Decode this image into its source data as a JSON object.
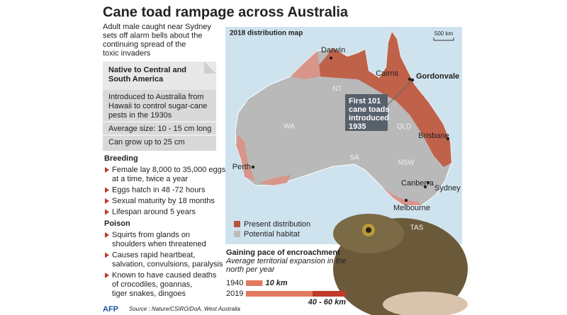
{
  "title": "Cane toad rampage across Australia",
  "subtitle": [
    "Adult male caught near Sydney",
    "sets off alarm bells about the",
    "continuing spread of the",
    "toxic invaders"
  ],
  "fact_box": {
    "heading": [
      "Native to Central and",
      "South America"
    ],
    "items": [
      [
        "Introduced to Australia from",
        "Hawaii to control sugar-cane",
        "pests in the 1930s"
      ],
      [
        "Average size: 10 - 15 cm long"
      ],
      [
        "Can grow up to 25 cm"
      ]
    ]
  },
  "breeding": {
    "heading": "Breeding",
    "items": [
      [
        "Female lay 8,000 to 35,000 eggs",
        "at a time, twice a year"
      ],
      [
        "Eggs hatch in 48 -72 hours"
      ],
      [
        "Sexual maturity by 18 months"
      ],
      [
        "Lifespan around 5 years"
      ]
    ]
  },
  "poison": {
    "heading": "Poison",
    "items": [
      [
        "Squirts from glands on",
        "shoulders when threatened"
      ],
      [
        "Causes rapid heartbeat,",
        "salvation, convulsions, paralysis"
      ],
      [
        "Known to have caused deaths",
        "of crocodiles, goannas,",
        "tiger snakes, dingoes"
      ]
    ]
  },
  "map": {
    "title": "2018 distribution map",
    "scale": "500 km",
    "places": [
      "Darwin",
      "Cairns",
      "Gordonvale",
      "Brisbane",
      "Perth",
      "Canberra",
      "Sydney",
      "Melbourne"
    ],
    "regions": [
      "NT",
      "WA",
      "QLD",
      "SA",
      "NSW",
      "TAS"
    ],
    "callout": [
      "First 101",
      "cane toads",
      "introduced",
      "1935"
    ],
    "legend": [
      "Present distribution",
      "Potential habitat"
    ]
  },
  "encroachment": {
    "title": "Gaining pace of encroachment",
    "subtitle": [
      "Average territorial expansion in the",
      "north per year"
    ],
    "rows": [
      {
        "year": "1940",
        "value": 10,
        "label": "10 km"
      },
      {
        "year": "2019",
        "low": 40,
        "high": 60,
        "label": "40 - 60 km"
      }
    ]
  },
  "footer": {
    "logo": "AFP",
    "source": "Source : Nature/CSIRO/DoA, West Australia"
  }
}
